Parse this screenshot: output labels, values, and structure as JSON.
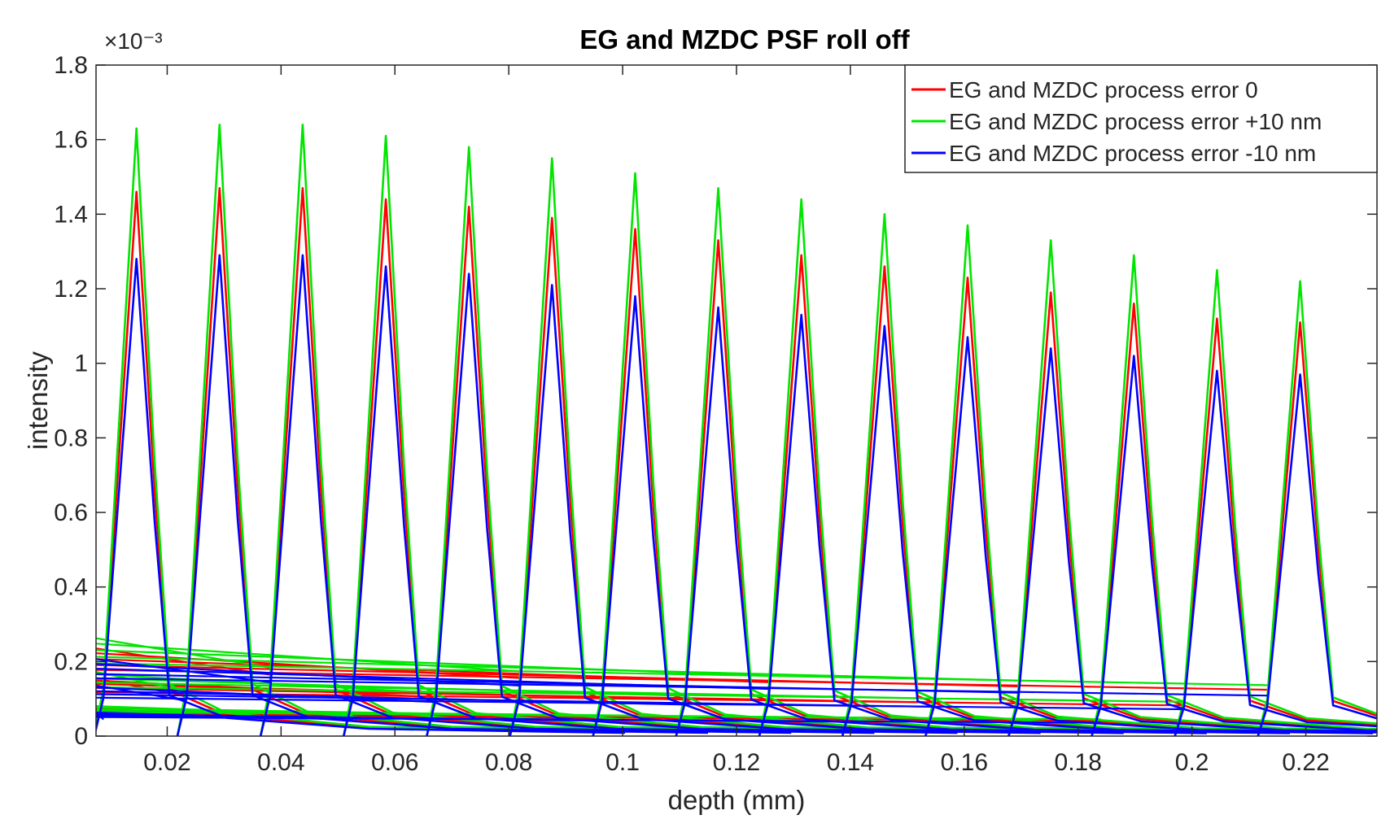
{
  "chart_data": {
    "type": "line",
    "title": "EG and MZDC PSF roll off",
    "xlabel": "depth (mm)",
    "ylabel": "intensity",
    "y_exponent": "×10⁻³",
    "xlim": [
      0.0075,
      0.2325
    ],
    "ylim": [
      0,
      0.0018
    ],
    "xticks": [
      0.02,
      0.04,
      0.06,
      0.08,
      0.1,
      0.12,
      0.14,
      0.16,
      0.18,
      0.2,
      0.22
    ],
    "xtick_labels": [
      "0.02",
      "0.04",
      "0.06",
      "0.08",
      "0.1",
      "0.12",
      "0.14",
      "0.16",
      "0.18",
      "0.2",
      "0.22"
    ],
    "yticks": [
      0,
      0.0002,
      0.0004,
      0.0006,
      0.0008,
      0.001,
      0.0012,
      0.0014,
      0.0016,
      0.0018
    ],
    "ytick_labels": [
      "0",
      "0.2",
      "0.4",
      "0.6",
      "0.8",
      "1",
      "1.2",
      "1.4",
      "1.6",
      "1.8"
    ],
    "legend_position": "top-right",
    "grid": false,
    "peak_depths": [
      0.0146,
      0.0292,
      0.0438,
      0.0584,
      0.073,
      0.0876,
      0.1022,
      0.1168,
      0.1314,
      0.146,
      0.1606,
      0.1752,
      0.1898,
      0.2044,
      0.219
    ],
    "series": [
      {
        "name": "EG and MZDC process error 0",
        "color": "#ff0000",
        "peak_values": [
          0.00146,
          0.00147,
          0.00147,
          0.00144,
          0.00142,
          0.00139,
          0.00136,
          0.00133,
          0.00129,
          0.00126,
          0.00123,
          0.00119,
          0.00116,
          0.00112,
          0.00111
        ]
      },
      {
        "name": "EG and MZDC process error +10 nm",
        "color": "#00e600",
        "peak_values": [
          0.00163,
          0.00164,
          0.00164,
          0.00161,
          0.00158,
          0.00155,
          0.00151,
          0.00147,
          0.00144,
          0.0014,
          0.00137,
          0.00133,
          0.00129,
          0.00125,
          0.00122
        ]
      },
      {
        "name": "EG and MZDC process error -10 nm",
        "color": "#0000ff",
        "peak_values": [
          0.00128,
          0.00129,
          0.00129,
          0.00126,
          0.00124,
          0.00121,
          0.00118,
          0.00115,
          0.00113,
          0.0011,
          0.00107,
          0.00104,
          0.00102,
          0.00098,
          0.00097
        ]
      }
    ]
  }
}
